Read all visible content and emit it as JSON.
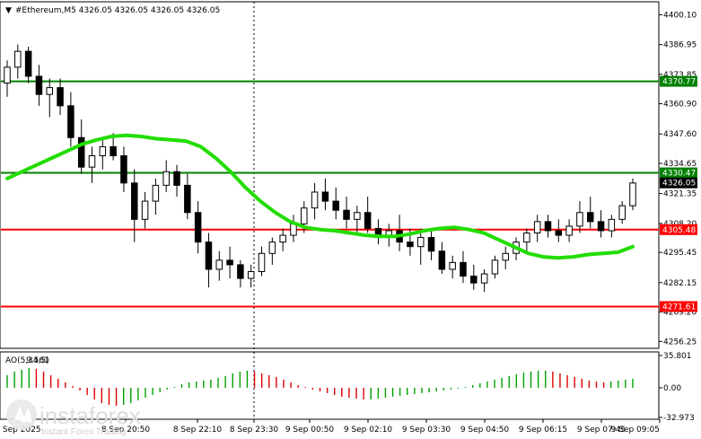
{
  "header": {
    "arrow": "▼",
    "text": "#Ethereum,M5  4326.05 4326.05 4326.05 4326.05"
  },
  "brand": {
    "name": "instaforex",
    "tagline": "Instant Forex Trading"
  },
  "chart_data": [
    {
      "type": "candlestick",
      "symbol": "#Ethereum",
      "timeframe": "M5",
      "ohlc_readout": [
        4326.05,
        4326.05,
        4326.05,
        4326.05
      ],
      "ylim": [
        4254.0,
        4405.0
      ],
      "y_ticks": [
        "4400.10",
        "4386.95",
        "4373.85",
        "4360.90",
        "4347.60",
        "4334.65",
        "4321.35",
        "4308.20",
        "4295.45",
        "4282.15",
        "4269.20",
        "4256.25"
      ],
      "x_ticks": [
        "8 Sep 2025",
        "8 Sep 20:50",
        "8 Sep 22:10",
        "8 Sep 23:30",
        "9 Sep 00:50",
        "9 Sep 02:10",
        "9 Sep 03:30",
        "9 Sep 04:50",
        "9 Sep 06:15",
        "9 Sep 07:45",
        "9 Sep 09:05"
      ],
      "price_levels": [
        {
          "label": "4370.77",
          "value": 4370.77,
          "color": "#008000"
        },
        {
          "label": "4330.47",
          "value": 4330.47,
          "color": "#008000"
        },
        {
          "label": "4305.48",
          "value": 4305.48,
          "color": "#ff0000"
        },
        {
          "label": "4271.61",
          "value": 4271.61,
          "color": "#ff0000"
        }
      ],
      "current_price": {
        "label": "4326.05",
        "value": 4326.05
      },
      "moving_average": {
        "color": "#22dd00",
        "values": [
          4328,
          4331,
          4334,
          4337,
          4340,
          4343,
          4345,
          4346.5,
          4347,
          4346.5,
          4345.5,
          4345,
          4344.5,
          4342,
          4337,
          4331,
          4324,
          4318,
          4313,
          4309,
          4306.5,
          4305.5,
          4305,
          4304,
          4303,
          4302.5,
          4302.5,
          4303.5,
          4305,
          4306,
          4306.5,
          4305.5,
          4304,
          4301,
          4298,
          4295,
          4293.5,
          4293,
          4293.5,
          4294.5,
          4295,
          4295.5,
          4298
        ]
      },
      "candles": [
        [
          4370,
          4380,
          4364,
          4377
        ],
        [
          4377,
          4387,
          4372,
          4384
        ],
        [
          4384,
          4386,
          4370,
          4373
        ],
        [
          4373,
          4378,
          4360,
          4365
        ],
        [
          4365,
          4372,
          4355,
          4368
        ],
        [
          4368,
          4372,
          4356,
          4360
        ],
        [
          4360,
          4366,
          4342,
          4346
        ],
        [
          4346,
          4354,
          4330,
          4333
        ],
        [
          4333,
          4342,
          4326,
          4338
        ],
        [
          4338,
          4346,
          4332,
          4342
        ],
        [
          4342,
          4348,
          4336,
          4338
        ],
        [
          4338,
          4342,
          4322,
          4326
        ],
        [
          4326,
          4332,
          4300,
          4310
        ],
        [
          4310,
          4322,
          4306,
          4318
        ],
        [
          4318,
          4328,
          4312,
          4325
        ],
        [
          4325,
          4336,
          4322,
          4331
        ],
        [
          4331,
          4334,
          4320,
          4325
        ],
        [
          4325,
          4330,
          4310,
          4313
        ],
        [
          4313,
          4318,
          4295,
          4300
        ],
        [
          4300,
          4304,
          4280,
          4288
        ],
        [
          4288,
          4296,
          4283,
          4292
        ],
        [
          4292,
          4298,
          4284,
          4290
        ],
        [
          4290,
          4292,
          4280,
          4284
        ],
        [
          4284,
          4290,
          4280,
          4287
        ],
        [
          4287,
          4298,
          4285,
          4295
        ],
        [
          4295,
          4302,
          4290,
          4300
        ],
        [
          4300,
          4306,
          4296,
          4303
        ],
        [
          4303,
          4312,
          4300,
          4308
        ],
        [
          4308,
          4318,
          4304,
          4315
        ],
        [
          4315,
          4326,
          4310,
          4322
        ],
        [
          4322,
          4328,
          4314,
          4318
        ],
        [
          4318,
          4324,
          4310,
          4314
        ],
        [
          4314,
          4320,
          4306,
          4310
        ],
        [
          4310,
          4316,
          4304,
          4313
        ],
        [
          4313,
          4320,
          4304,
          4306
        ],
        [
          4306,
          4310,
          4299,
          4302
        ],
        [
          4302,
          4308,
          4298,
          4305
        ],
        [
          4305,
          4312,
          4296,
          4300
        ],
        [
          4300,
          4306,
          4294,
          4298
        ],
        [
          4298,
          4306,
          4290,
          4302
        ],
        [
          4302,
          4306,
          4292,
          4296
        ],
        [
          4296,
          4300,
          4286,
          4288
        ],
        [
          4288,
          4294,
          4284,
          4291
        ],
        [
          4291,
          4296,
          4282,
          4285
        ],
        [
          4285,
          4290,
          4279,
          4282
        ],
        [
          4282,
          4288,
          4278,
          4286
        ],
        [
          4286,
          4294,
          4284,
          4292
        ],
        [
          4292,
          4298,
          4288,
          4295
        ],
        [
          4295,
          4302,
          4292,
          4300
        ],
        [
          4300,
          4306,
          4296,
          4304
        ],
        [
          4304,
          4312,
          4300,
          4309
        ],
        [
          4309,
          4312,
          4302,
          4305
        ],
        [
          4305,
          4310,
          4300,
          4303
        ],
        [
          4303,
          4310,
          4300,
          4307
        ],
        [
          4307,
          4318,
          4304,
          4313
        ],
        [
          4313,
          4320,
          4306,
          4309
        ],
        [
          4309,
          4314,
          4302,
          4305
        ],
        [
          4305,
          4312,
          4302,
          4310
        ],
        [
          4310,
          4318,
          4308,
          4316
        ],
        [
          4316,
          4328,
          4314,
          4326
        ]
      ]
    },
    {
      "type": "bar",
      "title": "AO(5,34,5)",
      "indicator": "AO",
      "readout": "9.561",
      "ylim": [
        -32.973,
        35.801
      ],
      "y_ticks": [
        "35.801",
        "0.00",
        "-32.973"
      ],
      "values": [
        14,
        18,
        20,
        22,
        21,
        18,
        14,
        10,
        6,
        2,
        -3,
        -8,
        -13,
        -17,
        -19,
        -20,
        -19,
        -17,
        -14,
        -11,
        -8,
        -5,
        -2,
        1,
        4,
        6,
        7,
        8,
        9,
        11,
        13,
        16,
        18,
        19,
        18,
        16,
        14,
        12,
        9,
        6,
        3,
        1,
        -2,
        -4,
        -6,
        -8,
        -10,
        -11,
        -12,
        -13,
        -13,
        -12,
        -11,
        -10,
        -9,
        -8,
        -7,
        -6,
        -5,
        -4,
        -3,
        -2,
        -1,
        1,
        3,
        5,
        7,
        9,
        11,
        13,
        15,
        17,
        18,
        19,
        19,
        18,
        16,
        14,
        12,
        10,
        8,
        7,
        6,
        7,
        8,
        9,
        10
      ]
    }
  ]
}
